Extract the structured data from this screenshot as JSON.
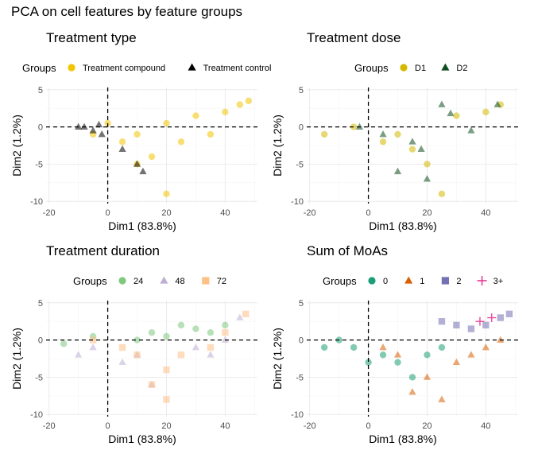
{
  "figure": {
    "title": "PCA on cell features by feature groups",
    "colors": {
      "grid_major": "#e8e8e8",
      "grid_minor": "#f4f4f4",
      "axis_text": "#4d4d4d",
      "refline": "#000000"
    }
  },
  "chart_data": [
    {
      "type": "scatter",
      "title": "Treatment type",
      "xlabel": "Dim1 (83.8%)",
      "ylabel": "Dim2 (1.2%)",
      "xlim": [
        -21,
        51
      ],
      "ylim": [
        -10.3,
        5.3
      ],
      "xticks": [
        -20,
        0,
        20,
        40
      ],
      "yticks": [
        -10,
        -5,
        0,
        5
      ],
      "reference_lines": {
        "x": 0,
        "y": 0,
        "style": "dashed"
      },
      "grid": true,
      "legend": {
        "title": "Groups",
        "placement": "top"
      },
      "series": [
        {
          "name": "Treatment compound",
          "color": "#f2c500",
          "shape": "circle",
          "points": [
            [
              45,
              3
            ],
            [
              40,
              2
            ],
            [
              30,
              1.5
            ],
            [
              20,
              0.5
            ],
            [
              10,
              -1
            ],
            [
              5,
              -2
            ],
            [
              15,
              -4
            ],
            [
              20,
              -9
            ],
            [
              -5,
              -1
            ],
            [
              25,
              -2
            ],
            [
              48,
              3.5
            ],
            [
              35,
              -1
            ],
            [
              10,
              -5
            ],
            [
              0,
              0.5
            ]
          ]
        },
        {
          "name": "Treatment control",
          "color": "#000000",
          "shape": "triangle",
          "points": [
            [
              -3,
              0.3
            ],
            [
              -8,
              0
            ],
            [
              -5,
              -0.5
            ],
            [
              -10,
              0
            ],
            [
              5,
              -3
            ],
            [
              10,
              -5
            ],
            [
              12,
              -6
            ],
            [
              -2,
              -1
            ]
          ]
        }
      ]
    },
    {
      "type": "scatter",
      "title": "Treatment dose",
      "xlabel": "Dim1 (83.8%)",
      "ylabel": "Dim2 (1.2%)",
      "xlim": [
        -21,
        51
      ],
      "ylim": [
        -10.3,
        5.3
      ],
      "xticks": [
        -20,
        0,
        20,
        40
      ],
      "yticks": [
        -10,
        -5,
        0,
        5
      ],
      "reference_lines": {
        "x": 0,
        "y": 0,
        "style": "dashed"
      },
      "grid": true,
      "legend": {
        "title": "Groups",
        "placement": "top"
      },
      "series": [
        {
          "name": "D1",
          "color": "#d4b800",
          "shape": "circle",
          "points": [
            [
              45,
              3
            ],
            [
              30,
              1.5
            ],
            [
              10,
              -1
            ],
            [
              20,
              -5
            ],
            [
              -15,
              -1
            ],
            [
              25,
              -9
            ],
            [
              40,
              2
            ],
            [
              5,
              -2
            ],
            [
              -5,
              0
            ],
            [
              15,
              -3
            ]
          ]
        },
        {
          "name": "D2",
          "color": "#0f4d1f",
          "shape": "triangle",
          "points": [
            [
              44,
              3
            ],
            [
              28,
              1.8
            ],
            [
              15,
              -2
            ],
            [
              20,
              -7
            ],
            [
              5,
              -1
            ],
            [
              -3,
              0
            ],
            [
              35,
              -0.5
            ],
            [
              10,
              -6
            ],
            [
              25,
              3
            ],
            [
              18,
              -3
            ]
          ]
        }
      ]
    },
    {
      "type": "scatter",
      "title": "Treatment duration",
      "xlabel": "Dim1 (83.8%)",
      "ylabel": "Dim2 (1.2%)",
      "xlim": [
        -21,
        51
      ],
      "ylim": [
        -10.3,
        5.3
      ],
      "xticks": [
        -20,
        0,
        20,
        40
      ],
      "yticks": [
        -10,
        -5,
        0,
        5
      ],
      "reference_lines": {
        "x": 0,
        "y": 0,
        "style": "dashed"
      },
      "grid": true,
      "legend": {
        "title": "Groups",
        "placement": "top"
      },
      "series": [
        {
          "name": "24",
          "color": "#7fc97f",
          "shape": "circle",
          "points": [
            [
              30,
              1.5
            ],
            [
              25,
              2
            ],
            [
              35,
              1
            ],
            [
              40,
              2
            ],
            [
              20,
              0.5
            ],
            [
              10,
              0
            ],
            [
              -15,
              -0.5
            ],
            [
              -5,
              0.5
            ],
            [
              15,
              1
            ]
          ]
        },
        {
          "name": "48",
          "color": "#beaed4",
          "shape": "triangle",
          "points": [
            [
              45,
              3
            ],
            [
              40,
              0
            ],
            [
              30,
              -1
            ],
            [
              10,
              -2
            ],
            [
              5,
              -3
            ],
            [
              -10,
              -2
            ],
            [
              -5,
              -1
            ],
            [
              15,
              -6
            ],
            [
              35,
              -2
            ]
          ]
        },
        {
          "name": "72",
          "color": "#fdc086",
          "shape": "square",
          "points": [
            [
              47,
              3.5
            ],
            [
              35,
              -1
            ],
            [
              25,
              -2
            ],
            [
              20,
              -4
            ],
            [
              15,
              -6
            ],
            [
              20,
              -8
            ],
            [
              5,
              -1
            ],
            [
              -5,
              0
            ],
            [
              10,
              -2
            ],
            [
              40,
              1
            ]
          ]
        }
      ]
    },
    {
      "type": "scatter",
      "title": "Sum of MoAs",
      "xlabel": "Dim1 (83.8%)",
      "ylabel": "Dim2 (1.2%)",
      "xlim": [
        -21,
        51
      ],
      "ylim": [
        -10.3,
        5.3
      ],
      "xticks": [
        -20,
        0,
        20,
        40
      ],
      "yticks": [
        -10,
        -5,
        0,
        5
      ],
      "reference_lines": {
        "x": 0,
        "y": 0,
        "style": "dashed"
      },
      "grid": true,
      "legend": {
        "title": "Groups",
        "placement": "top"
      },
      "series": [
        {
          "name": "0",
          "color": "#1b9e77",
          "shape": "circle",
          "points": [
            [
              -10,
              0
            ],
            [
              -5,
              -1
            ],
            [
              5,
              -2
            ],
            [
              10,
              -3
            ],
            [
              20,
              -2
            ],
            [
              15,
              -5
            ],
            [
              25,
              -1
            ],
            [
              -15,
              -1
            ],
            [
              0,
              -3
            ]
          ]
        },
        {
          "name": "1",
          "color": "#d95f02",
          "shape": "triangle",
          "points": [
            [
              10,
              -2
            ],
            [
              20,
              -5
            ],
            [
              25,
              -8
            ],
            [
              30,
              -3
            ],
            [
              35,
              -2
            ],
            [
              40,
              -1
            ],
            [
              5,
              -1
            ],
            [
              15,
              -7
            ],
            [
              45,
              0
            ]
          ]
        },
        {
          "name": "2",
          "color": "#7570b3",
          "shape": "square",
          "points": [
            [
              30,
              2
            ],
            [
              35,
              1.5
            ],
            [
              40,
              2
            ],
            [
              45,
              3
            ],
            [
              48,
              3.5
            ],
            [
              25,
              2.5
            ]
          ]
        },
        {
          "name": "3+",
          "color": "#e7298a",
          "shape": "plus",
          "points": [
            [
              42,
              3
            ],
            [
              38,
              2.5
            ]
          ]
        }
      ]
    }
  ]
}
